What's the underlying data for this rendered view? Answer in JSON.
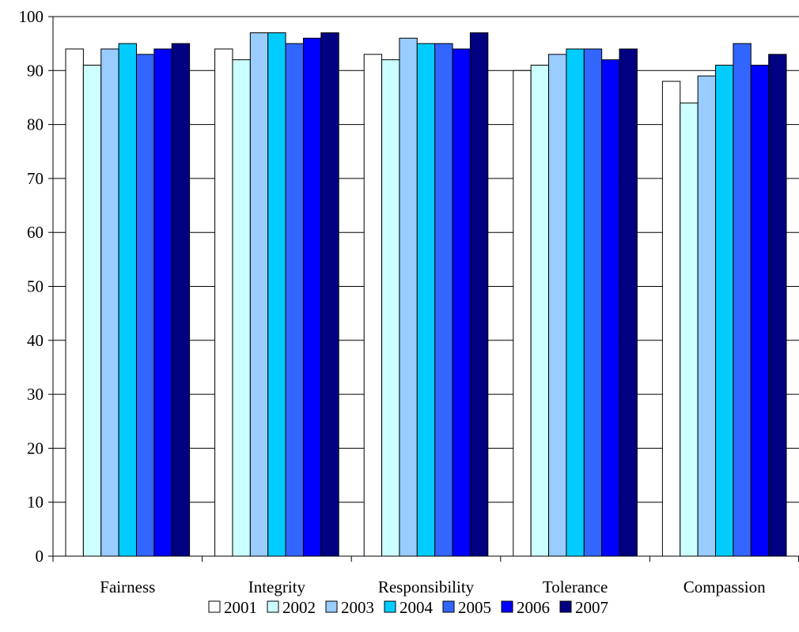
{
  "chart_data": {
    "type": "bar",
    "title": "",
    "xlabel": "",
    "ylabel": "",
    "categories": [
      "Fairness",
      "Integrity",
      "Responsibility",
      "Tolerance",
      "Compassion"
    ],
    "series": [
      {
        "name": "2001",
        "color": "#ffffff",
        "values": [
          94,
          94,
          93,
          90,
          88
        ]
      },
      {
        "name": "2002",
        "color": "#ccffff",
        "values": [
          91,
          92,
          92,
          91,
          84
        ]
      },
      {
        "name": "2003",
        "color": "#99ccff",
        "values": [
          94,
          97,
          96,
          93,
          89
        ]
      },
      {
        "name": "2004",
        "color": "#00ccff",
        "values": [
          95,
          97,
          95,
          94,
          91
        ]
      },
      {
        "name": "2005",
        "color": "#3366ff",
        "values": [
          93,
          95,
          95,
          94,
          95
        ]
      },
      {
        "name": "2006",
        "color": "#0000ff",
        "values": [
          94,
          96,
          94,
          92,
          91
        ]
      },
      {
        "name": "2007",
        "color": "#000080",
        "values": [
          95,
          97,
          97,
          94,
          93
        ]
      }
    ],
    "ylim": [
      0,
      100
    ],
    "yticks": [
      0,
      10,
      20,
      30,
      40,
      50,
      60,
      70,
      80,
      90,
      100
    ],
    "grid": true,
    "legend_position": "bottom"
  }
}
